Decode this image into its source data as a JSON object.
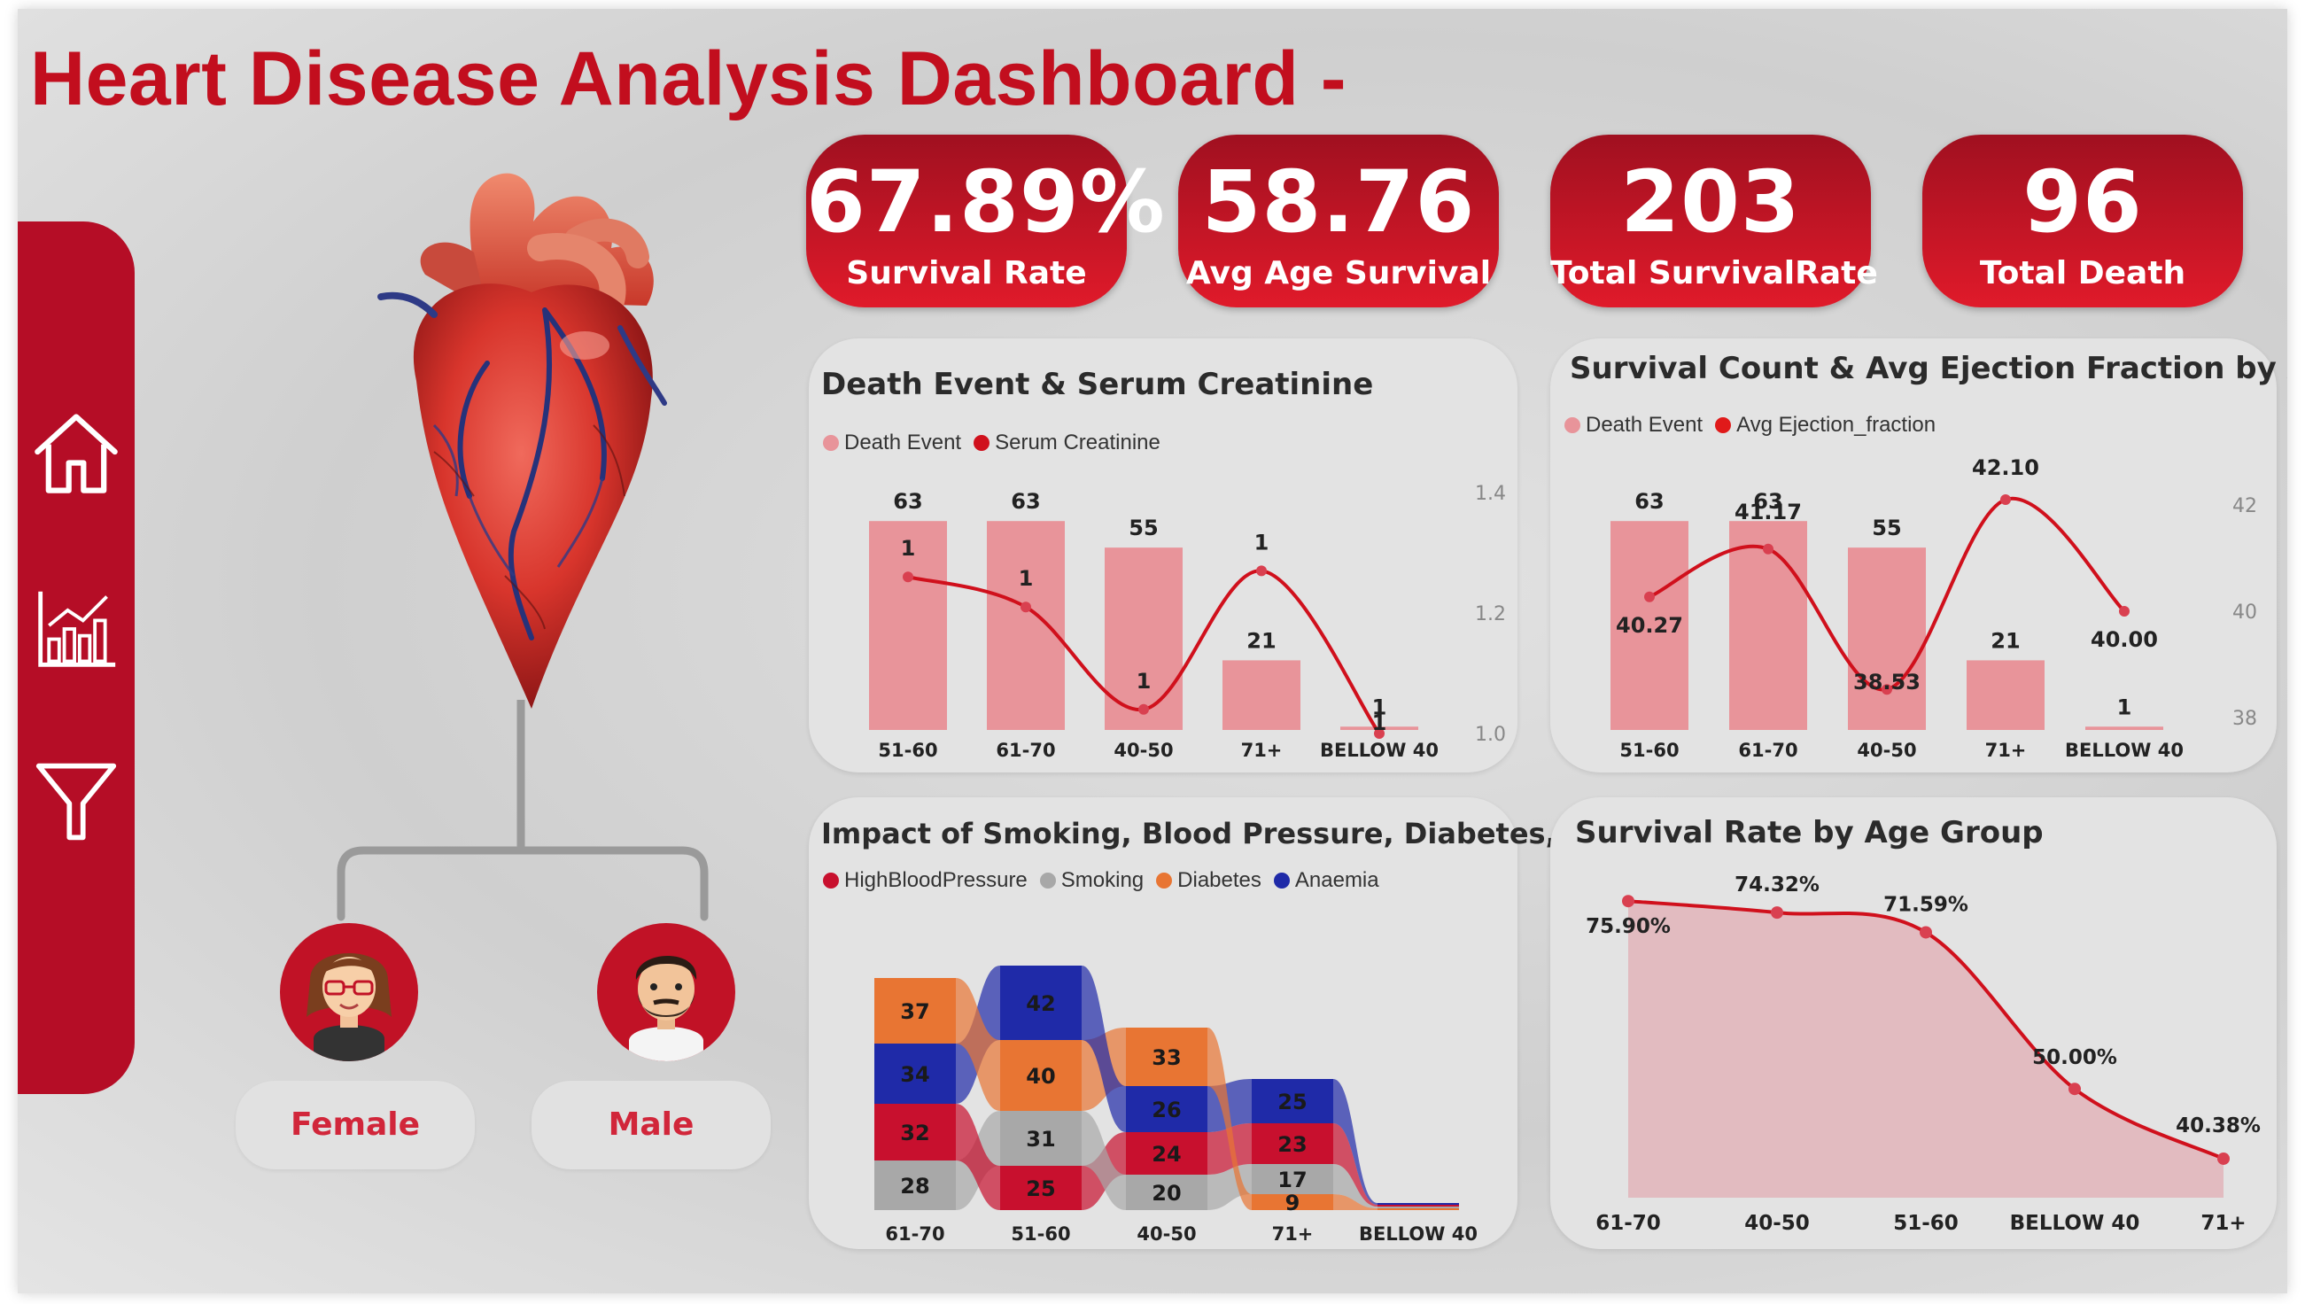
{
  "header": {
    "title": "Heart Disease Analysis Dashboard -"
  },
  "sidebar": {
    "items": [
      {
        "name": "home",
        "icon": "home-icon"
      },
      {
        "name": "report",
        "icon": "bar-chart-icon"
      },
      {
        "name": "filter",
        "icon": "filter-icon"
      }
    ]
  },
  "kpis": [
    {
      "value": "67.89%",
      "label": "Survival Rate"
    },
    {
      "value": "58.76",
      "label": "Avg Age Survival"
    },
    {
      "value": "203",
      "label": "Total SurvivalRate"
    },
    {
      "value": "96",
      "label": "Total Death"
    }
  ],
  "gender": {
    "female": "Female",
    "male": "Male"
  },
  "colors": {
    "accent": "#c20e1e",
    "sidebar": "#b50d26",
    "bar": "#e8949a",
    "line": "#d0101c",
    "high_bp": "#c8102e",
    "smoking": "#a8a8a8",
    "diabetes": "#e87533",
    "anaemia": "#1f2aa8"
  },
  "chart_data": [
    {
      "id": "death-serum",
      "type": "bar",
      "title": "Death Event & Serum Creatinine",
      "legend": [
        "Death Event",
        "Serum Creatinine"
      ],
      "categories": [
        "51-60",
        "61-70",
        "40-50",
        "71+",
        "BELLOW 40"
      ],
      "series": [
        {
          "name": "Death Event",
          "type": "bar",
          "values": [
            63,
            63,
            55,
            21,
            1
          ]
        },
        {
          "name": "Serum Creatinine",
          "type": "line",
          "values": [
            1.26,
            1.21,
            1.04,
            1.27,
            1.0
          ],
          "labels": [
            "1",
            "1",
            "1",
            "1",
            "1"
          ]
        }
      ],
      "y2_ticks": [
        "1.4",
        "1.2",
        "1.0"
      ],
      "y2lim": [
        1.0,
        1.4
      ],
      "ylim": [
        0,
        70
      ]
    },
    {
      "id": "survival-ejection",
      "type": "bar",
      "title": "Survival Count & Avg Ejection Fraction by Age",
      "legend": [
        "Death Event",
        "Avg Ejection_fraction"
      ],
      "categories": [
        "51-60",
        "61-70",
        "40-50",
        "71+",
        "BELLOW 40"
      ],
      "series": [
        {
          "name": "Death Event",
          "type": "bar",
          "values": [
            63,
            63,
            55,
            21,
            1
          ]
        },
        {
          "name": "Avg Ejection_fraction",
          "type": "line",
          "values": [
            40.27,
            41.17,
            38.53,
            42.1,
            40.0
          ],
          "labels": [
            "40.27",
            "41.17",
            "38.53",
            "42.10",
            "40.00"
          ]
        }
      ],
      "y2_ticks": [
        "42",
        "40",
        "38"
      ],
      "y2lim": [
        38,
        42
      ],
      "ylim": [
        0,
        70
      ]
    },
    {
      "id": "risk-factors",
      "type": "bar",
      "title": "Impact of Smoking, Blood Pressure, Diabetes, Anaemia",
      "legend": [
        "HighBloodPressure",
        "Smoking",
        "Diabetes",
        "Anaemia"
      ],
      "categories": [
        "61-70",
        "51-60",
        "40-50",
        "71+",
        "BELLOW 40"
      ],
      "stacks": [
        [
          {
            "series": "Diabetes",
            "value": 37
          },
          {
            "series": "Anaemia",
            "value": 34
          },
          {
            "series": "HighBloodPressure",
            "value": 32
          },
          {
            "series": "Smoking",
            "value": 28
          }
        ],
        [
          {
            "series": "Anaemia",
            "value": 42
          },
          {
            "series": "Diabetes",
            "value": 40
          },
          {
            "series": "Smoking",
            "value": 31
          },
          {
            "series": "HighBloodPressure",
            "value": 25
          }
        ],
        [
          {
            "series": "Diabetes",
            "value": 33
          },
          {
            "series": "Anaemia",
            "value": 26
          },
          {
            "series": "HighBloodPressure",
            "value": 24
          },
          {
            "series": "Smoking",
            "value": 20
          }
        ],
        [
          {
            "series": "Anaemia",
            "value": 25
          },
          {
            "series": "HighBloodPressure",
            "value": 23
          },
          {
            "series": "Smoking",
            "value": 17
          },
          {
            "series": "Diabetes",
            "value": 9
          }
        ],
        [
          {
            "series": "Anaemia",
            "value": 1
          },
          {
            "series": "HighBloodPressure",
            "value": 1
          },
          {
            "series": "Smoking",
            "value": 1
          },
          {
            "series": "Diabetes",
            "value": 1
          }
        ]
      ]
    },
    {
      "id": "survival-age-group",
      "type": "area",
      "title": "Survival Rate by Age Group",
      "categories": [
        "61-70",
        "40-50",
        "51-60",
        "BELLOW 40",
        "71+"
      ],
      "values": [
        75.9,
        74.32,
        71.59,
        50.0,
        40.38
      ],
      "labels": [
        "75.90%",
        "74.32%",
        "71.59%",
        "50.00%",
        "40.38%"
      ],
      "ylim": [
        35,
        78
      ]
    }
  ]
}
